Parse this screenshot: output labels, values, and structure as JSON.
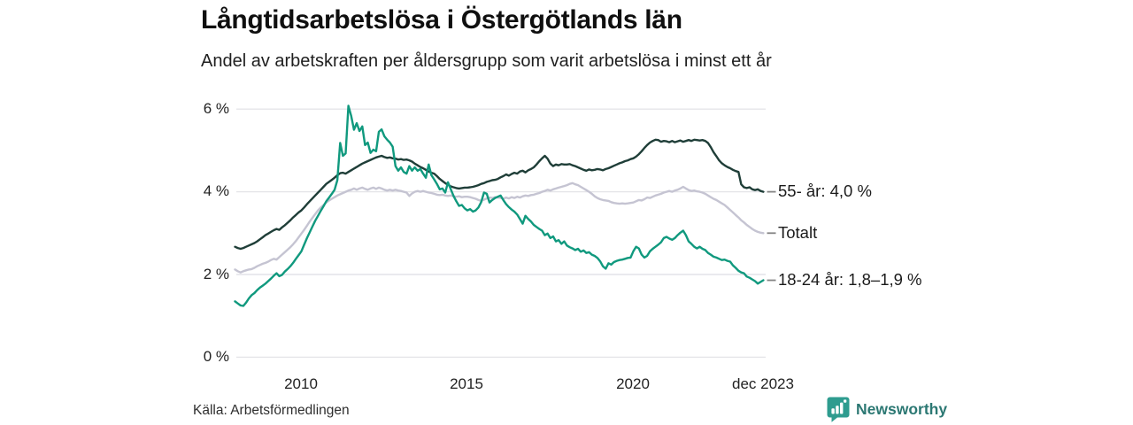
{
  "header": {
    "title": "Långtidsarbetslösa i Östergötlands län",
    "subtitle": "Andel av arbetskraften per åldersgrupp som varit arbetslösa i minst ett år"
  },
  "footer": {
    "source": "Källa: Arbetsförmedlingen",
    "brand": "Newsworthy",
    "brand_icon": "bar-chart-badge-icon"
  },
  "colors": {
    "series_55": "#1f3e38",
    "series_total": "#c5c4d2",
    "series_1824": "#10997e",
    "grid": "#e4e4e8",
    "leader": "#848484",
    "brand_icon": "#2e9c8f",
    "brand_text": "#2c7873"
  },
  "chart_data": {
    "type": "line",
    "title": "Långtidsarbetslösa i Östergötlands län",
    "subtitle": "Andel av arbetskraften per åldersgrupp som varit arbetslösa i minst ett år",
    "unit": "% av arbetskraften",
    "x_monthly_from": "2008-01",
    "x_monthly_to": "2023-12",
    "x_tick_labels": [
      "2010",
      "2015",
      "2020",
      "dec 2023"
    ],
    "x_tick_years": [
      2010,
      2015,
      2020,
      2023.917
    ],
    "y_tick_labels": [
      "6 %",
      "4 %",
      "2 %",
      "0 %"
    ],
    "y_ticks": [
      6,
      4,
      2,
      0
    ],
    "ylim": [
      0,
      6.3
    ],
    "grid": "horizontal",
    "legend_position": "right-end-labels",
    "series": [
      {
        "name": "55- år",
        "end_label": "55- år: 4,0 %",
        "end_value": 4.0,
        "color_key": "series_55",
        "values": [
          2.67,
          2.64,
          2.62,
          2.64,
          2.67,
          2.7,
          2.73,
          2.76,
          2.8,
          2.85,
          2.9,
          2.95,
          2.99,
          3.03,
          3.07,
          3.1,
          3.08,
          3.14,
          3.19,
          3.25,
          3.31,
          3.38,
          3.44,
          3.5,
          3.55,
          3.62,
          3.7,
          3.77,
          3.84,
          3.91,
          3.98,
          4.05,
          4.12,
          4.19,
          4.24,
          4.29,
          4.34,
          4.4,
          4.45,
          4.46,
          4.44,
          4.48,
          4.52,
          4.56,
          4.6,
          4.64,
          4.68,
          4.71,
          4.74,
          4.77,
          4.8,
          4.83,
          4.85,
          4.87,
          4.84,
          4.82,
          4.83,
          4.81,
          4.8,
          4.78,
          4.79,
          4.77,
          4.78,
          4.76,
          4.73,
          4.68,
          4.64,
          4.6,
          4.57,
          4.53,
          4.49,
          4.46,
          4.44,
          4.38,
          4.31,
          4.26,
          4.21,
          4.17,
          4.13,
          4.11,
          4.09,
          4.08,
          4.09,
          4.1,
          4.1,
          4.11,
          4.12,
          4.14,
          4.16,
          4.19,
          4.21,
          4.24,
          4.26,
          4.28,
          4.29,
          4.31,
          4.35,
          4.38,
          4.42,
          4.39,
          4.43,
          4.46,
          4.44,
          4.49,
          4.51,
          4.47,
          4.52,
          4.55,
          4.59,
          4.66,
          4.74,
          4.81,
          4.87,
          4.8,
          4.68,
          4.62,
          4.66,
          4.64,
          4.67,
          4.66,
          4.66,
          4.67,
          4.64,
          4.62,
          4.59,
          4.56,
          4.53,
          4.51,
          4.54,
          4.52,
          4.53,
          4.55,
          4.54,
          4.52,
          4.55,
          4.57,
          4.6,
          4.63,
          4.66,
          4.69,
          4.71,
          4.74,
          4.76,
          4.79,
          4.81,
          4.85,
          4.91,
          4.98,
          5.06,
          5.13,
          5.19,
          5.23,
          5.26,
          5.25,
          5.21,
          5.23,
          5.22,
          5.2,
          5.23,
          5.2,
          5.22,
          5.24,
          5.21,
          5.23,
          5.25,
          5.23,
          5.26,
          5.25,
          5.24,
          5.25,
          5.23,
          5.18,
          5.08,
          4.96,
          4.86,
          4.76,
          4.69,
          4.64,
          4.6,
          4.57,
          4.53,
          4.5,
          4.48,
          4.18,
          4.11,
          4.09,
          4.11,
          4.06,
          4.04,
          4.06,
          4.02,
          4.0
        ]
      },
      {
        "name": "Totalt",
        "end_label": "Totalt",
        "end_value": 3.0,
        "color_key": "series_total",
        "values": [
          2.12,
          2.08,
          2.05,
          2.08,
          2.1,
          2.12,
          2.13,
          2.16,
          2.2,
          2.23,
          2.26,
          2.28,
          2.31,
          2.35,
          2.38,
          2.36,
          2.42,
          2.48,
          2.54,
          2.6,
          2.66,
          2.73,
          2.81,
          2.9,
          2.99,
          3.08,
          3.18,
          3.28,
          3.37,
          3.46,
          3.55,
          3.62,
          3.68,
          3.74,
          3.79,
          3.83,
          3.87,
          3.91,
          3.94,
          3.97,
          4.0,
          4.03,
          4.05,
          4.08,
          4.05,
          4.08,
          4.1,
          4.07,
          4.05,
          4.08,
          4.1,
          4.07,
          4.1,
          4.08,
          4.05,
          4.03,
          4.05,
          4.03,
          4.05,
          4.03,
          4.02,
          4.0,
          3.98,
          3.9,
          3.96,
          4.0,
          4.02,
          4.0,
          4.02,
          4.0,
          3.98,
          3.97,
          3.95,
          3.93,
          3.92,
          3.93,
          3.91,
          3.9,
          3.91,
          3.89,
          3.88,
          3.89,
          3.87,
          3.88,
          3.88,
          3.87,
          3.85,
          3.83,
          3.8,
          3.78,
          3.81,
          3.84,
          3.86,
          3.85,
          3.87,
          3.86,
          3.85,
          3.83,
          3.86,
          3.84,
          3.87,
          3.85,
          3.88,
          3.86,
          3.89,
          3.91,
          3.9,
          3.92,
          3.93,
          3.95,
          3.97,
          4.0,
          4.02,
          4.05,
          4.03,
          4.06,
          4.08,
          4.1,
          4.12,
          4.14,
          4.16,
          4.19,
          4.21,
          4.18,
          4.16,
          4.12,
          4.08,
          4.04,
          4.0,
          3.95,
          3.89,
          3.85,
          3.82,
          3.8,
          3.79,
          3.78,
          3.75,
          3.73,
          3.72,
          3.71,
          3.72,
          3.71,
          3.72,
          3.73,
          3.74,
          3.77,
          3.8,
          3.79,
          3.82,
          3.86,
          3.85,
          3.88,
          3.91,
          3.93,
          3.95,
          3.98,
          4.0,
          4.02,
          4.0,
          4.03,
          4.05,
          4.08,
          4.12,
          4.08,
          4.04,
          4.02,
          4.03,
          4.01,
          4.0,
          3.98,
          3.95,
          3.91,
          3.87,
          3.83,
          3.8,
          3.76,
          3.72,
          3.68,
          3.62,
          3.56,
          3.5,
          3.44,
          3.38,
          3.31,
          3.26,
          3.2,
          3.15,
          3.1,
          3.06,
          3.03,
          3.01,
          3.0
        ]
      },
      {
        "name": "18-24 år",
        "end_label": "18-24 år: 1,8–1,9 %",
        "end_value": 1.85,
        "color_key": "series_1824",
        "values": [
          1.35,
          1.3,
          1.25,
          1.24,
          1.32,
          1.42,
          1.5,
          1.55,
          1.62,
          1.68,
          1.73,
          1.78,
          1.84,
          1.9,
          1.97,
          2.03,
          1.96,
          1.99,
          2.07,
          2.13,
          2.2,
          2.28,
          2.38,
          2.47,
          2.56,
          2.72,
          2.88,
          3.02,
          3.16,
          3.3,
          3.42,
          3.54,
          3.65,
          3.77,
          3.86,
          3.95,
          4.05,
          4.28,
          5.18,
          4.87,
          4.93,
          6.08,
          5.83,
          5.5,
          5.66,
          5.47,
          5.58,
          5.13,
          5.19,
          4.94,
          5.02,
          4.98,
          5.45,
          5.51,
          5.34,
          5.26,
          5.19,
          5.09,
          4.62,
          4.51,
          4.59,
          4.48,
          4.44,
          4.62,
          4.51,
          4.59,
          4.51,
          4.55,
          4.44,
          4.34,
          4.66,
          4.4,
          4.3,
          4.19,
          4.06,
          4.08,
          3.98,
          4.23,
          4.06,
          3.9,
          3.77,
          3.66,
          3.68,
          3.6,
          3.55,
          3.58,
          3.52,
          3.55,
          3.62,
          3.75,
          3.98,
          3.95,
          3.74,
          3.8,
          3.85,
          3.88,
          3.91,
          3.8,
          3.7,
          3.63,
          3.57,
          3.52,
          3.45,
          3.34,
          3.23,
          3.42,
          3.34,
          3.28,
          3.2,
          3.15,
          3.1,
          3.06,
          2.95,
          2.99,
          2.88,
          2.92,
          2.8,
          2.83,
          2.74,
          2.8,
          2.7,
          2.66,
          2.63,
          2.59,
          2.62,
          2.55,
          2.58,
          2.52,
          2.54,
          2.48,
          2.45,
          2.4,
          2.32,
          2.2,
          2.14,
          2.27,
          2.24,
          2.3,
          2.33,
          2.35,
          2.36,
          2.38,
          2.4,
          2.41,
          2.56,
          2.67,
          2.63,
          2.48,
          2.41,
          2.45,
          2.56,
          2.62,
          2.67,
          2.72,
          2.78,
          2.88,
          2.91,
          2.87,
          2.84,
          2.88,
          2.95,
          3.01,
          3.06,
          2.95,
          2.8,
          2.74,
          2.67,
          2.63,
          2.67,
          2.62,
          2.59,
          2.52,
          2.48,
          2.43,
          2.41,
          2.38,
          2.35,
          2.36,
          2.33,
          2.31,
          2.22,
          2.16,
          2.09,
          2.05,
          2.03,
          1.95,
          1.92,
          1.88,
          1.84,
          1.78,
          1.82,
          1.86
        ]
      }
    ]
  }
}
